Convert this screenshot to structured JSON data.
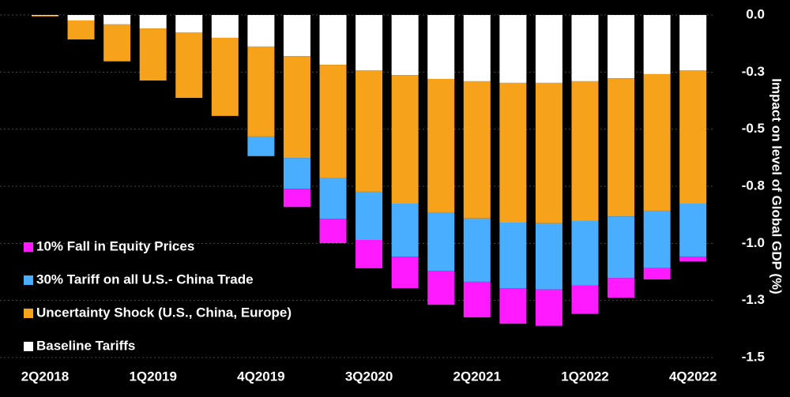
{
  "chart_data": {
    "type": "bar",
    "stacked": true,
    "y_label": "Impact on level of Global GDP (%)",
    "categories": [
      "2Q2018",
      null,
      null,
      "1Q2019",
      null,
      null,
      "4Q2019",
      null,
      null,
      "3Q2020",
      null,
      null,
      "2Q2021",
      null,
      null,
      "1Q2022",
      null,
      null,
      "4Q2022"
    ],
    "series": [
      {
        "name": "Baseline Tariffs",
        "color": "#ffffff",
        "values": [
          -0.003,
          -0.024,
          -0.041,
          -0.059,
          -0.076,
          -0.1,
          -0.138,
          -0.18,
          -0.218,
          -0.242,
          -0.263,
          -0.28,
          -0.29,
          -0.297,
          -0.297,
          -0.29,
          -0.277,
          -0.259,
          -0.242
        ]
      },
      {
        "name": "Uncertainty Shock (U.S., China, Europe)",
        "color": "#f7a21b",
        "values": [
          -0.003,
          -0.083,
          -0.162,
          -0.228,
          -0.287,
          -0.342,
          -0.394,
          -0.446,
          -0.494,
          -0.532,
          -0.563,
          -0.584,
          -0.601,
          -0.612,
          -0.615,
          -0.612,
          -0.605,
          -0.598,
          -0.584
        ]
      },
      {
        "name": "30% Tariff on all U.S.- China Trade",
        "color": "#4aaeff",
        "values": [
          0,
          0,
          0,
          0,
          0,
          0,
          -0.086,
          -0.135,
          -0.18,
          -0.211,
          -0.232,
          -0.256,
          -0.277,
          -0.287,
          -0.29,
          -0.283,
          -0.27,
          -0.249,
          -0.232
        ]
      },
      {
        "name": "10% Fall in Equity Prices",
        "color": "#ff1aff",
        "values": [
          0,
          0,
          0,
          0,
          0,
          0,
          0,
          -0.08,
          -0.107,
          -0.124,
          -0.138,
          -0.149,
          -0.156,
          -0.156,
          -0.159,
          -0.124,
          -0.086,
          -0.052,
          -0.021
        ]
      }
    ],
    "ylim": [
      -1.5,
      0
    ],
    "yticks": [
      {
        "value": 0,
        "label": "0.0"
      },
      {
        "value": -0.25,
        "label": "-0.3"
      },
      {
        "value": -0.5,
        "label": "-0.5"
      },
      {
        "value": -0.75,
        "label": "-0.8"
      },
      {
        "value": -1.0,
        "label": "-1.0"
      },
      {
        "value": -1.25,
        "label": "-1.3"
      },
      {
        "value": -1.5,
        "label": "-1.5"
      }
    ],
    "grid": true,
    "legend": "lower left"
  }
}
